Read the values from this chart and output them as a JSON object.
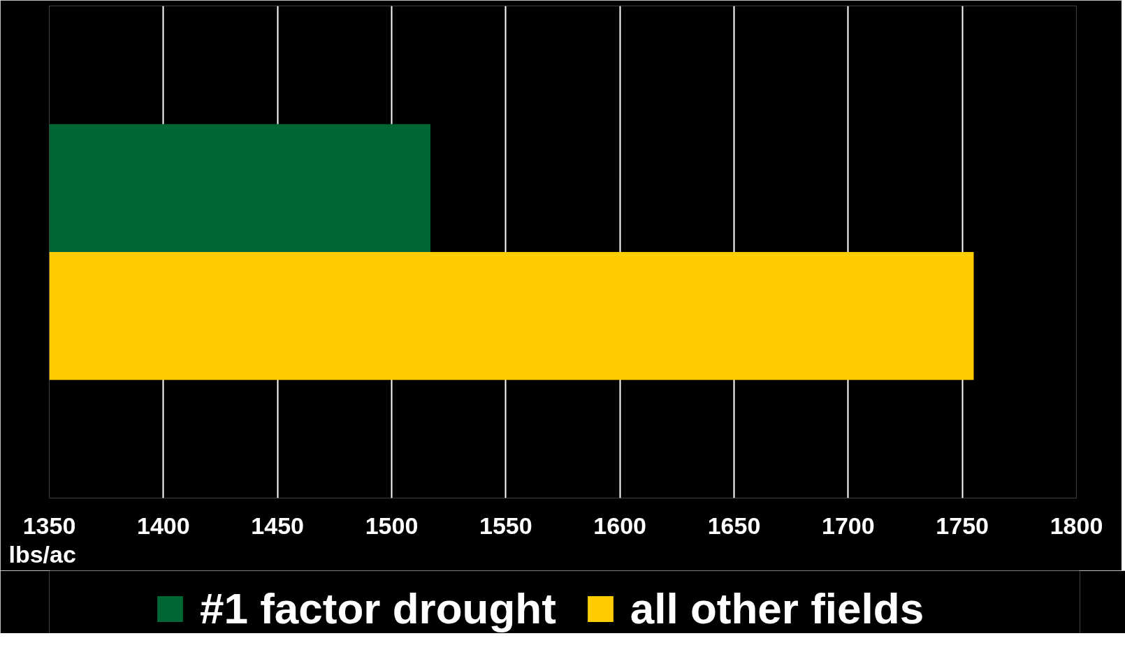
{
  "chart_data": {
    "type": "bar",
    "orientation": "horizontal",
    "categories": [
      null
    ],
    "xlabel": "lbs/ac",
    "series": [
      {
        "name": "#1 factor drought",
        "color": "#006633",
        "values": [
          1517
        ]
      },
      {
        "name": "all other fields",
        "color": "#ffcc00",
        "values": [
          1755
        ]
      }
    ],
    "xlim": [
      1350,
      1800
    ],
    "xticks": [
      1350,
      1400,
      1450,
      1500,
      1550,
      1600,
      1650,
      1700,
      1750,
      1800
    ],
    "grid": "x",
    "legend": "bottom"
  }
}
